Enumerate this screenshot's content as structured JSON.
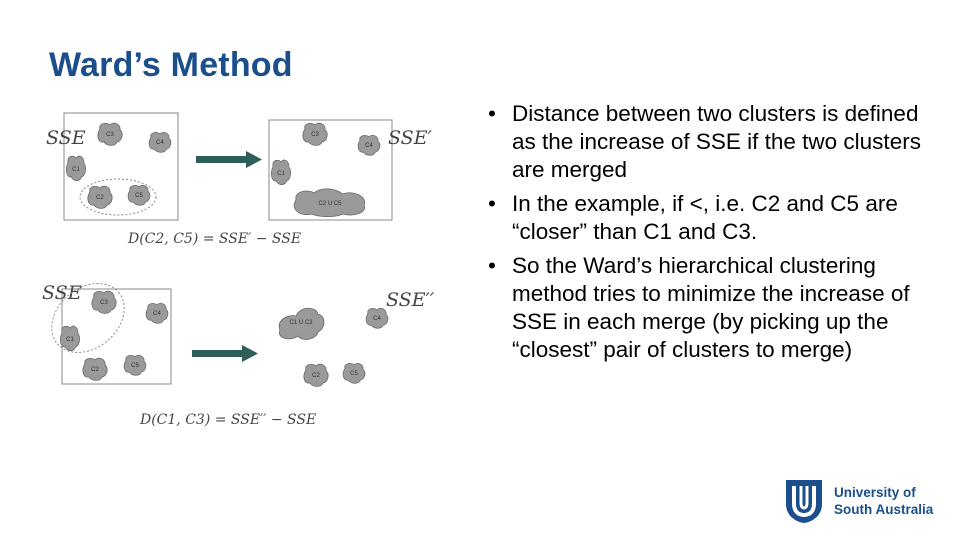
{
  "slide": {
    "title": "Ward’s Method"
  },
  "diagram": {
    "top_before_label": "SSE",
    "top_after_label": "SSE′",
    "top_formula": "D(C2, C5) = SSE′ − SSE",
    "bottom_before_label": "SSE",
    "bottom_after_label": "SSE′′",
    "bottom_formula": "D(C1, C3) = SSE′′ − SSE",
    "clusters": {
      "c1": "C1",
      "c2": "C2",
      "c3": "C3",
      "c4": "C4",
      "c5": "C5",
      "c2_u_c5": "C2 U C5",
      "c1_u_c3": "C1 U C3"
    }
  },
  "bullets": [
    "Distance between two clusters is defined as the increase of SSE if the two clusters are merged",
    "In the example, if <, i.e. C2 and C5 are “closer” than C1 and C3.",
    "So the Ward’s hierarchical clustering method tries to minimize the increase of SSE in each merge (by picking up the “closest” pair of clusters to merge)"
  ],
  "bullet_symbol": "•",
  "logo": {
    "line1": "University of",
    "line2": "South Australia"
  },
  "colors": {
    "title": "#1a4f8c",
    "arrow": "#2f5d57",
    "cluster_fill": "#9a9a9a",
    "logo": "#1a4f8c"
  }
}
